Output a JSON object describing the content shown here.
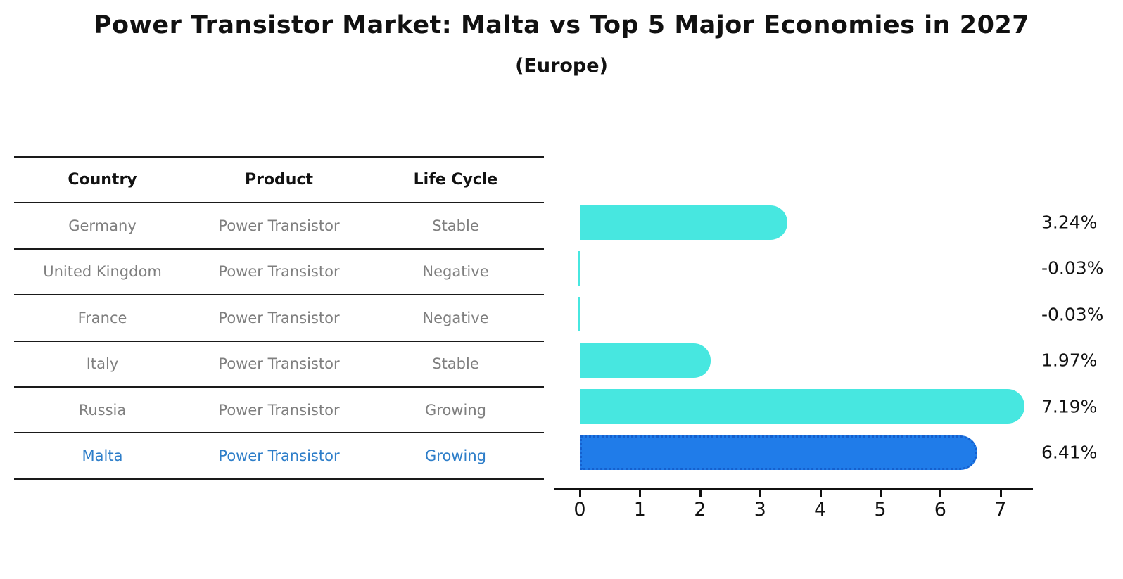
{
  "title": "Power Transistor Market: Malta vs Top 5 Major Economies in 2027",
  "subtitle": "(Europe)",
  "table": {
    "headers": [
      "Country",
      "Product",
      "Life Cycle"
    ],
    "rows": [
      {
        "country": "Germany",
        "product": "Power Transistor",
        "life_cycle": "Stable",
        "highlighted": false
      },
      {
        "country": "United Kingdom",
        "product": "Power Transistor",
        "life_cycle": "Negative",
        "highlighted": false
      },
      {
        "country": "France",
        "product": "Power Transistor",
        "life_cycle": "Negative",
        "highlighted": false
      },
      {
        "country": "Italy",
        "product": "Power Transistor",
        "life_cycle": "Stable",
        "highlighted": false
      },
      {
        "country": "Russia",
        "product": "Power Transistor",
        "life_cycle": "Growing",
        "highlighted": false
      },
      {
        "country": "Malta",
        "product": "Power Transistor",
        "life_cycle": "Growing",
        "highlighted": true
      }
    ]
  },
  "chart_data": {
    "type": "bar",
    "orientation": "horizontal",
    "title": "Power Transistor Market: Malta vs Top 5 Major Economies in 2027",
    "subtitle": "(Europe)",
    "categories": [
      "Germany",
      "United Kingdom",
      "France",
      "Italy",
      "Russia",
      "Malta"
    ],
    "values": [
      3.24,
      -0.03,
      -0.03,
      1.97,
      7.19,
      6.41
    ],
    "value_labels": [
      "3.24%",
      "-0.03%",
      "-0.03%",
      "1.97%",
      "7.19%",
      "6.41%"
    ],
    "unit": "%",
    "xlabel": "",
    "ylabel": "",
    "xlim": [
      0,
      7.5
    ],
    "x_ticks": [
      0,
      1,
      2,
      3,
      4,
      5,
      6,
      7
    ],
    "grid": false,
    "legend": false,
    "highlight_index": 5
  },
  "colors": {
    "bar_default": "#47e7e0",
    "bar_highlight": "#207ce9",
    "bar_highlight_border": "#1560ce",
    "table_text": "#7f7f7f",
    "highlight_text": "#2e7ec9",
    "heading_text": "#111111"
  }
}
